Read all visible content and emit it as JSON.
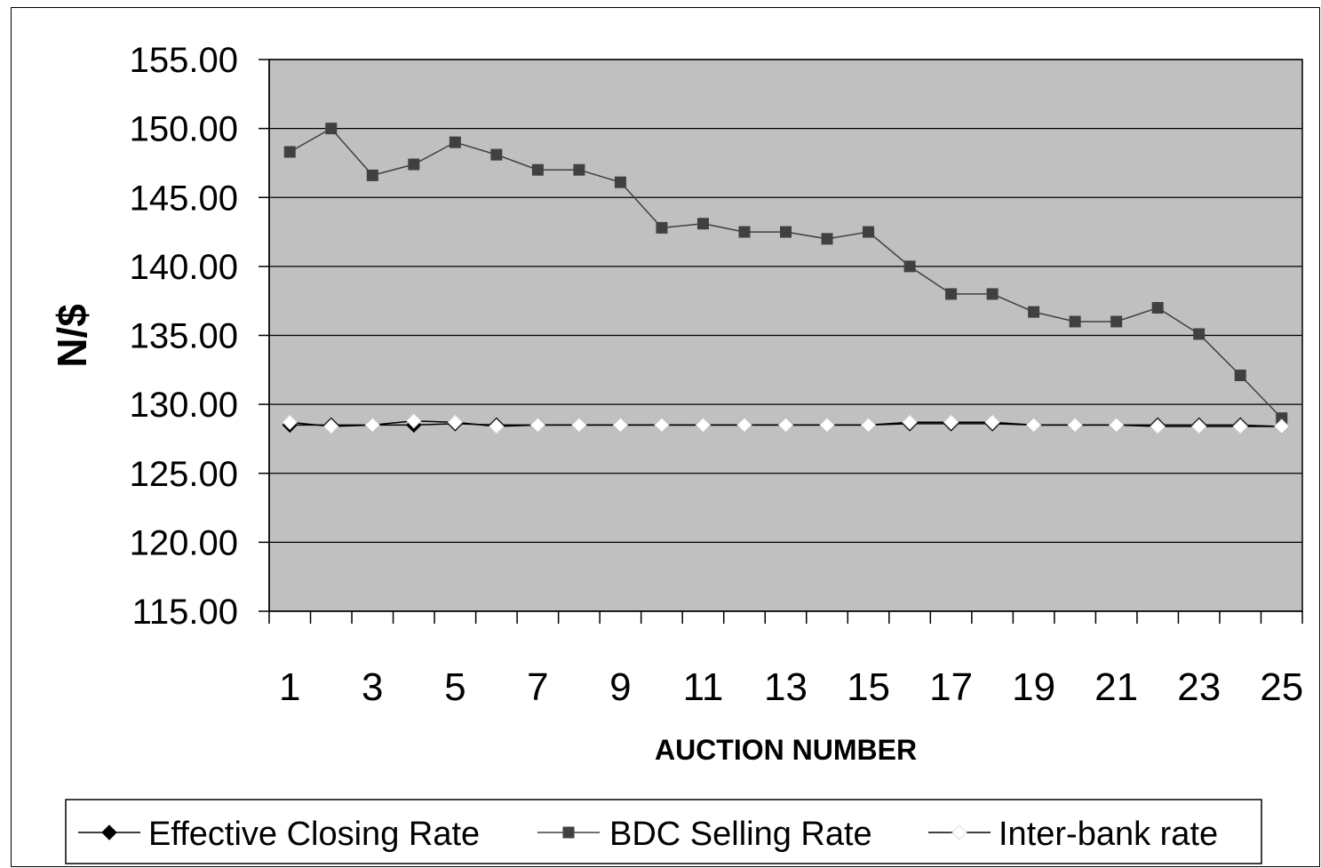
{
  "chart_data": {
    "type": "line",
    "title": "",
    "xlabel": "AUCTION NUMBER",
    "ylabel": "N/$",
    "ylim": [
      115,
      155
    ],
    "y_ticks": [
      "115.00",
      "120.00",
      "125.00",
      "130.00",
      "135.00",
      "140.00",
      "145.00",
      "150.00",
      "155.00"
    ],
    "x": [
      1,
      2,
      3,
      4,
      5,
      6,
      7,
      8,
      9,
      10,
      11,
      12,
      13,
      14,
      15,
      16,
      17,
      18,
      19,
      20,
      21,
      22,
      23,
      24,
      25
    ],
    "x_tick_labels": [
      "1",
      "3",
      "5",
      "7",
      "9",
      "11",
      "13",
      "15",
      "17",
      "19",
      "21",
      "23",
      "25"
    ],
    "grid": "horizontal",
    "legend_position": "bottom",
    "plot_background": "#c0c0c0",
    "series": [
      {
        "name": "Effective Closing Rate",
        "marker": "diamond",
        "color": "#000000",
        "values": [
          128.5,
          128.5,
          128.5,
          128.5,
          128.6,
          128.5,
          128.5,
          128.5,
          128.5,
          128.5,
          128.5,
          128.5,
          128.5,
          128.5,
          128.5,
          128.6,
          128.6,
          128.6,
          128.5,
          128.5,
          128.5,
          128.5,
          128.5,
          128.5,
          128.4
        ]
      },
      {
        "name": "BDC Selling Rate",
        "marker": "square",
        "color": "#404040",
        "values": [
          148.3,
          150.0,
          146.6,
          147.4,
          149.0,
          148.1,
          147.0,
          147.0,
          146.1,
          142.8,
          143.1,
          142.5,
          142.5,
          142.0,
          142.5,
          140.0,
          138.0,
          138.0,
          136.7,
          136.0,
          136.0,
          137.0,
          135.1,
          132.1,
          129.0
        ]
      },
      {
        "name": "Inter-bank rate",
        "marker": "diamond",
        "color": "#ffffff",
        "values": [
          128.7,
          128.4,
          128.5,
          128.8,
          128.7,
          128.4,
          128.5,
          128.5,
          128.5,
          128.5,
          128.5,
          128.5,
          128.5,
          128.5,
          128.5,
          128.7,
          128.7,
          128.7,
          128.5,
          128.5,
          128.5,
          128.4,
          128.4,
          128.4,
          128.4
        ]
      }
    ]
  }
}
